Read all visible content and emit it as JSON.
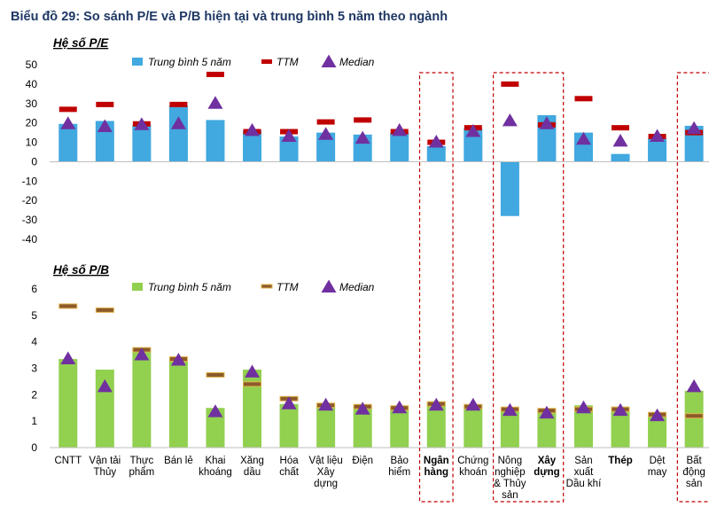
{
  "title": "Biểu đồ 29: So sánh P/E và P/B hiện tại và trung bình 5 năm theo ngành",
  "colors": {
    "title": "#1f3864",
    "pe_bar": "#41a8e0",
    "pe_ttm": "#c00000",
    "pb_bar": "#92d050",
    "pb_ttm": "#8b5a2b",
    "median": "#7030a0",
    "highlight": "#c00000"
  },
  "categories": [
    {
      "lines": [
        "CNTT"
      ],
      "bold": false
    },
    {
      "lines": [
        "Vận tải",
        "Thủy"
      ],
      "bold": false
    },
    {
      "lines": [
        "Thực",
        "phẩm"
      ],
      "bold": false
    },
    {
      "lines": [
        "Bán lẻ"
      ],
      "bold": false
    },
    {
      "lines": [
        "Khai",
        "khoáng"
      ],
      "bold": false
    },
    {
      "lines": [
        "Xăng",
        "dầu"
      ],
      "bold": false
    },
    {
      "lines": [
        "Hóa",
        "chất"
      ],
      "bold": false
    },
    {
      "lines": [
        "Vật liệu",
        "Xây",
        "dựng"
      ],
      "bold": false
    },
    {
      "lines": [
        "Điện"
      ],
      "bold": false
    },
    {
      "lines": [
        "Bảo",
        "hiểm"
      ],
      "bold": false
    },
    {
      "lines": [
        "Ngân",
        "hàng"
      ],
      "bold": true
    },
    {
      "lines": [
        "Chứng",
        "khoán"
      ],
      "bold": false
    },
    {
      "lines": [
        "Nông",
        "nghiệp",
        "& Thủy",
        "sản"
      ],
      "bold": false
    },
    {
      "lines": [
        "Xây",
        "dựng"
      ],
      "bold": true
    },
    {
      "lines": [
        "Sản",
        "xuất",
        "Dầu khí"
      ],
      "bold": false
    },
    {
      "lines": [
        "Thép"
      ],
      "bold": true
    },
    {
      "lines": [
        "Dệt",
        "may"
      ],
      "bold": false
    },
    {
      "lines": [
        "Bất",
        "động",
        "sản"
      ],
      "bold": false
    }
  ],
  "highlight_labels": [
    "Ngân hàng",
    "Nông nghiệp & Thủy sản",
    "Xây dựng",
    "Bất động sản"
  ],
  "highlight_indices": [
    [
      10,
      10
    ],
    [
      12,
      13
    ],
    [
      17,
      17
    ]
  ],
  "legend": {
    "avg": "Trung bình 5 năm",
    "ttm": "TTM",
    "median": "Median"
  },
  "chart_data": [
    {
      "type": "bar",
      "title": "Hệ số P/E",
      "ylim": [
        -40,
        50
      ],
      "yticks": [
        50,
        40,
        30,
        20,
        10,
        0,
        -10,
        -20,
        -30,
        -40
      ],
      "series": [
        {
          "name": "Trung bình 5 năm",
          "values": [
            19.5,
            21,
            19,
            29,
            21.5,
            16,
            13,
            15,
            14,
            15,
            8,
            17,
            -28,
            24,
            15,
            4,
            12,
            18.5
          ]
        },
        {
          "name": "TTM",
          "values": [
            27,
            29.5,
            19.5,
            29.5,
            45,
            15.5,
            15.5,
            20.5,
            21.5,
            15.5,
            10,
            17.5,
            40,
            19,
            32.5,
            17.5,
            13,
            15
          ]
        },
        {
          "name": "Median",
          "values": [
            19.5,
            18,
            19,
            19.5,
            30,
            16,
            13,
            14,
            12,
            16,
            10,
            15.5,
            21,
            19.5,
            11.5,
            10.5,
            13,
            17
          ]
        }
      ]
    },
    {
      "type": "bar",
      "title": "Hệ số P/B",
      "ylim": [
        0,
        6
      ],
      "yticks": [
        6,
        5,
        4,
        3,
        2,
        1,
        0
      ],
      "series": [
        {
          "name": "Trung bình 5 năm",
          "values": [
            3.35,
            2.95,
            3.75,
            3.35,
            1.5,
            2.95,
            1.65,
            1.6,
            1.55,
            1.5,
            1.75,
            1.6,
            1.5,
            1.45,
            1.6,
            1.55,
            1.25,
            2.15
          ]
        },
        {
          "name": "TTM",
          "values": [
            5.35,
            5.2,
            3.7,
            3.35,
            2.75,
            2.4,
            1.85,
            1.6,
            1.55,
            1.5,
            1.65,
            1.55,
            1.45,
            1.4,
            1.45,
            1.45,
            1.25,
            1.2
          ]
        },
        {
          "name": "Median",
          "values": [
            3.35,
            2.3,
            3.5,
            3.3,
            1.35,
            2.85,
            1.65,
            1.6,
            1.45,
            1.5,
            1.6,
            1.6,
            1.4,
            1.3,
            1.5,
            1.4,
            1.2,
            2.3
          ]
        }
      ]
    }
  ]
}
